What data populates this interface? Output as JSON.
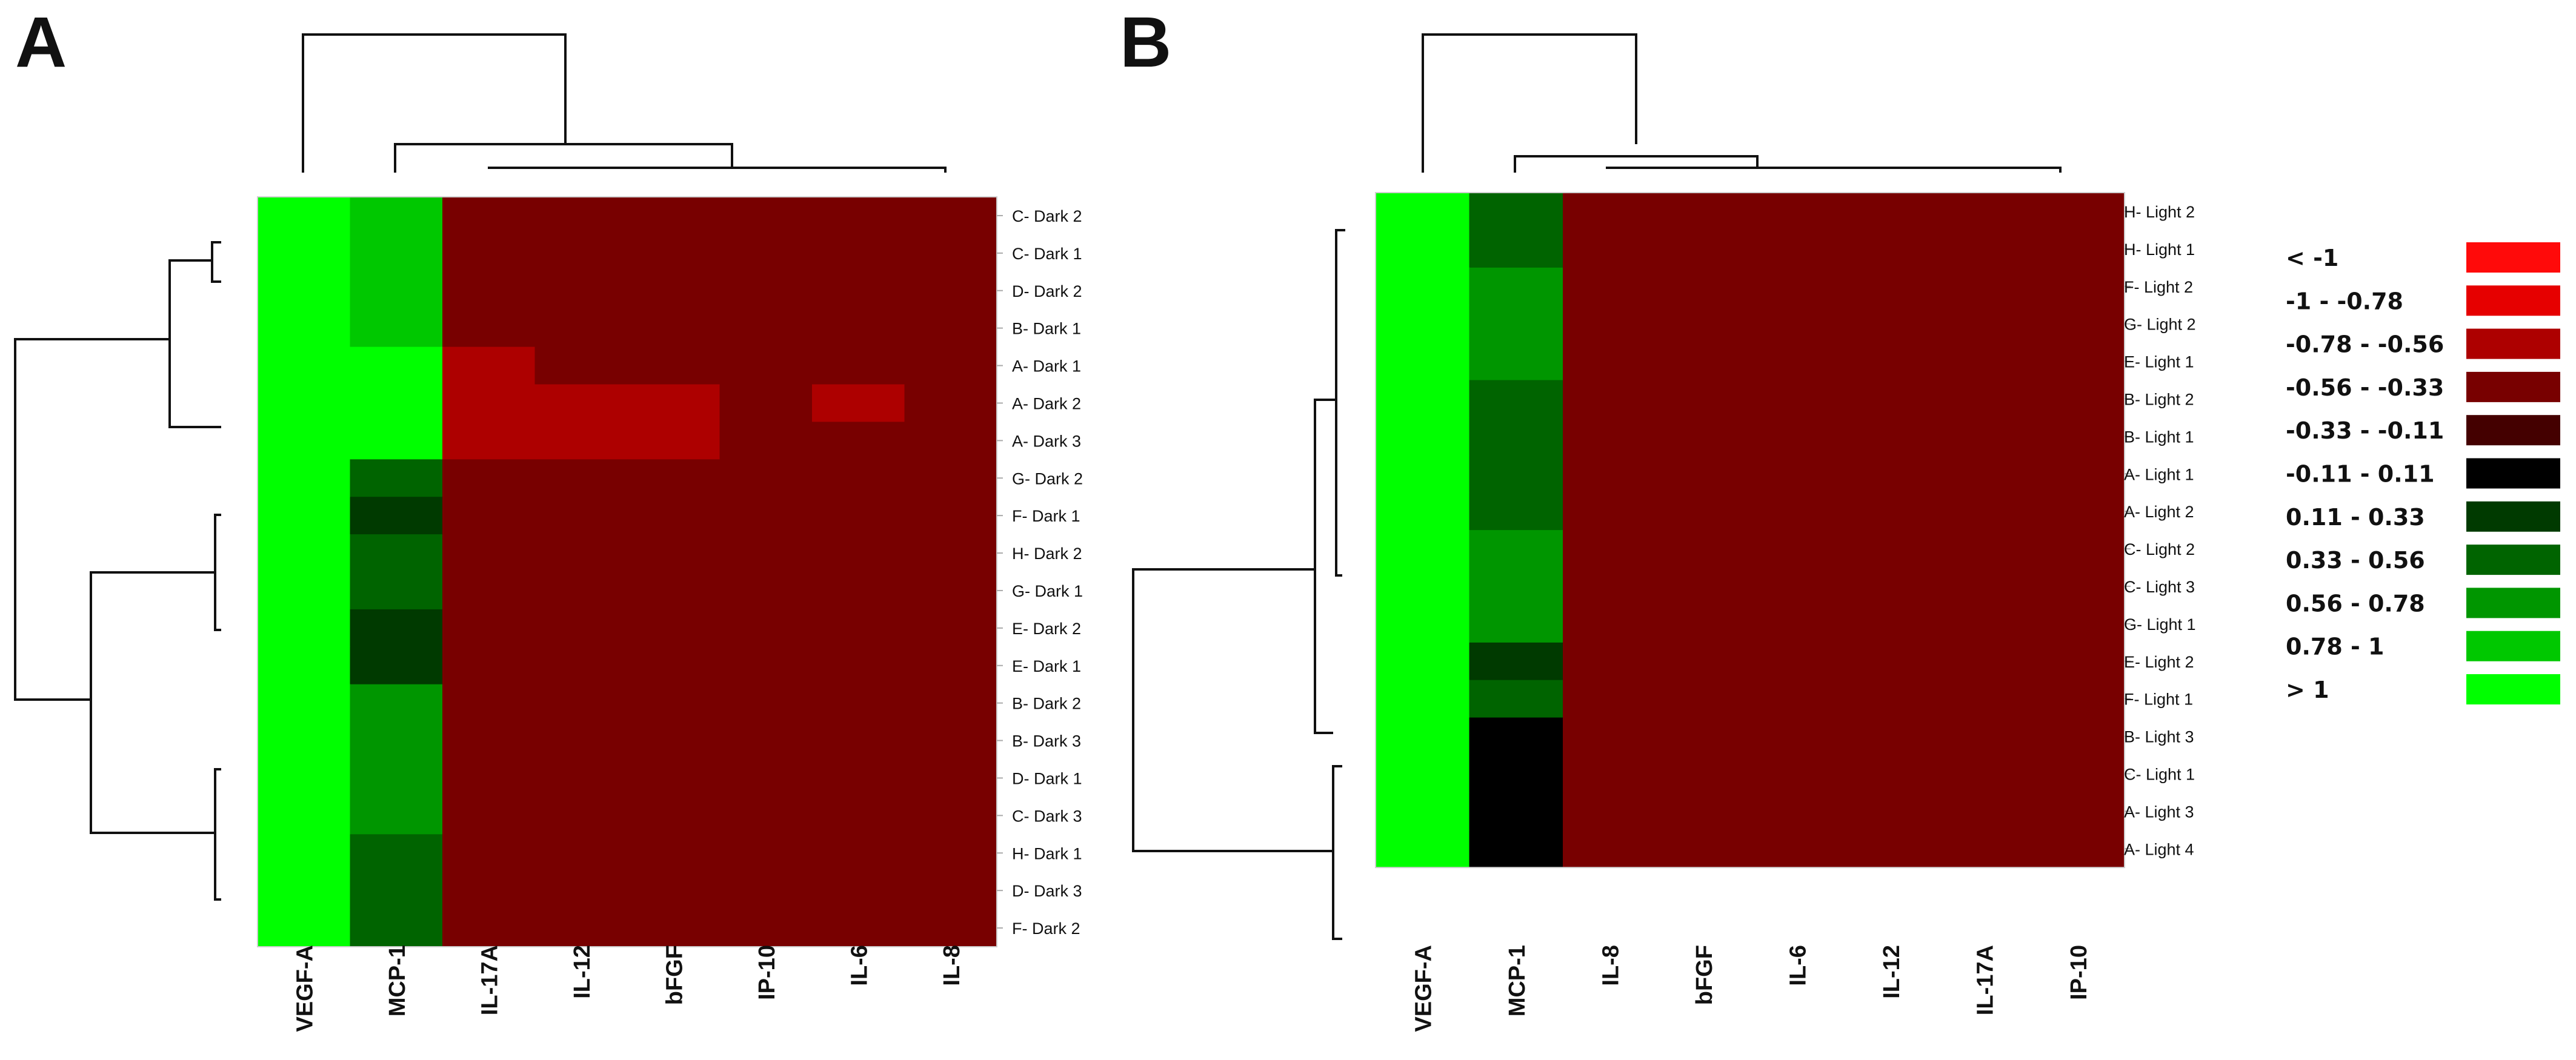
{
  "chart_data": [
    {
      "type": "heatmap",
      "title": "",
      "panel_label": "A",
      "columns": [
        "VEGF-A",
        "MCP-1",
        "IL-17A",
        "IL-12",
        "bFGF",
        "IP-10",
        "IL-6",
        "IL-8"
      ],
      "rows": [
        "C- Dark 2",
        "C- Dark 1",
        "D- Dark 2",
        "B- Dark 1",
        "A- Dark 1",
        "A- Dark 2",
        "A- Dark 3",
        "G- Dark 2",
        "F- Dark 1",
        "H- Dark 2",
        "G- Dark 1",
        "E- Dark 2",
        "E- Dark 1",
        "B- Dark 2",
        "B- Dark 3",
        "D- Dark 1",
        "C- Dark 3",
        "H- Dark 1",
        "D- Dark 3",
        "F- Dark 2"
      ],
      "values": [
        [
          1.2,
          0.9,
          -0.45,
          -0.45,
          -0.45,
          -0.45,
          -0.45,
          -0.45
        ],
        [
          1.2,
          0.9,
          -0.45,
          -0.45,
          -0.45,
          -0.45,
          -0.45,
          -0.45
        ],
        [
          1.2,
          0.9,
          -0.45,
          -0.45,
          -0.45,
          -0.45,
          -0.45,
          -0.45
        ],
        [
          1.2,
          0.9,
          -0.45,
          -0.45,
          -0.45,
          -0.45,
          -0.45,
          -0.45
        ],
        [
          1.2,
          1.2,
          -0.67,
          -0.45,
          -0.45,
          -0.45,
          -0.45,
          -0.45
        ],
        [
          1.2,
          1.2,
          -0.67,
          -0.67,
          -0.67,
          -0.45,
          -0.67,
          -0.45
        ],
        [
          1.2,
          1.2,
          -0.67,
          -0.67,
          -0.67,
          -0.45,
          -0.45,
          -0.45
        ],
        [
          1.2,
          0.45,
          -0.45,
          -0.45,
          -0.45,
          -0.45,
          -0.45,
          -0.45
        ],
        [
          1.2,
          0.22,
          -0.45,
          -0.45,
          -0.45,
          -0.45,
          -0.45,
          -0.45
        ],
        [
          1.2,
          0.45,
          -0.45,
          -0.45,
          -0.45,
          -0.45,
          -0.45,
          -0.45
        ],
        [
          1.2,
          0.45,
          -0.45,
          -0.45,
          -0.45,
          -0.45,
          -0.45,
          -0.45
        ],
        [
          1.2,
          0.22,
          -0.45,
          -0.45,
          -0.45,
          -0.45,
          -0.45,
          -0.45
        ],
        [
          1.2,
          0.22,
          -0.45,
          -0.45,
          -0.45,
          -0.45,
          -0.45,
          -0.45
        ],
        [
          1.2,
          0.67,
          -0.45,
          -0.45,
          -0.45,
          -0.45,
          -0.45,
          -0.45
        ],
        [
          1.2,
          0.67,
          -0.45,
          -0.45,
          -0.45,
          -0.45,
          -0.45,
          -0.45
        ],
        [
          1.2,
          0.67,
          -0.45,
          -0.45,
          -0.45,
          -0.45,
          -0.45,
          -0.45
        ],
        [
          1.2,
          0.67,
          -0.45,
          -0.45,
          -0.45,
          -0.45,
          -0.45,
          -0.45
        ],
        [
          1.2,
          0.45,
          -0.45,
          -0.45,
          -0.45,
          -0.45,
          -0.45,
          -0.45
        ],
        [
          1.2,
          0.45,
          -0.45,
          -0.45,
          -0.45,
          -0.45,
          -0.45,
          -0.45
        ],
        [
          1.2,
          0.45,
          -0.45,
          -0.45,
          -0.45,
          -0.45,
          -0.45,
          -0.45
        ]
      ],
      "column_dendrogram": "VEGF-A outgroup; MCP-1 joins cluster of remaining cytokines",
      "row_dendrogram": "two main clusters: Dark rows 1-7 and Dark rows 8-20"
    },
    {
      "type": "heatmap",
      "title": "",
      "panel_label": "B",
      "columns": [
        "VEGF-A",
        "MCP-1",
        "IL-8",
        "bFGF",
        "IL-6",
        "IL-12",
        "IL-17A",
        "IP-10"
      ],
      "rows": [
        "H- Light 2",
        "H- Light 1",
        "F- Light 2",
        "G- Light 2",
        "E- Light 1",
        "B- Light 2",
        "B- Light 1",
        "A- Light 1",
        "A- Light 2",
        "C- Light 2",
        "C- Light 3",
        "G- Light 1",
        "E- Light 2",
        "F- Light 1",
        "B- Light 3",
        "C- Light 1",
        "A- Light 3",
        "A- Light 4"
      ],
      "values": [
        [
          1.2,
          0.45,
          -0.45,
          -0.45,
          -0.45,
          -0.45,
          -0.45,
          -0.45
        ],
        [
          1.2,
          0.45,
          -0.45,
          -0.45,
          -0.45,
          -0.45,
          -0.45,
          -0.45
        ],
        [
          1.2,
          0.67,
          -0.45,
          -0.45,
          -0.45,
          -0.45,
          -0.45,
          -0.45
        ],
        [
          1.2,
          0.67,
          -0.45,
          -0.45,
          -0.45,
          -0.45,
          -0.45,
          -0.45
        ],
        [
          1.2,
          0.67,
          -0.45,
          -0.45,
          -0.45,
          -0.45,
          -0.45,
          -0.45
        ],
        [
          1.2,
          0.45,
          -0.45,
          -0.45,
          -0.45,
          -0.45,
          -0.45,
          -0.45
        ],
        [
          1.2,
          0.45,
          -0.45,
          -0.45,
          -0.45,
          -0.45,
          -0.45,
          -0.45
        ],
        [
          1.2,
          0.45,
          -0.45,
          -0.45,
          -0.45,
          -0.45,
          -0.45,
          -0.45
        ],
        [
          1.2,
          0.45,
          -0.45,
          -0.45,
          -0.45,
          -0.45,
          -0.45,
          -0.45
        ],
        [
          1.2,
          0.67,
          -0.45,
          -0.45,
          -0.45,
          -0.45,
          -0.45,
          -0.45
        ],
        [
          1.2,
          0.67,
          -0.45,
          -0.45,
          -0.45,
          -0.45,
          -0.45,
          -0.45
        ],
        [
          1.2,
          0.67,
          -0.45,
          -0.45,
          -0.45,
          -0.45,
          -0.45,
          -0.45
        ],
        [
          1.2,
          0.22,
          -0.45,
          -0.45,
          -0.45,
          -0.45,
          -0.45,
          -0.45
        ],
        [
          1.2,
          0.45,
          -0.45,
          -0.45,
          -0.45,
          -0.45,
          -0.45,
          -0.45
        ],
        [
          1.2,
          0.0,
          -0.45,
          -0.45,
          -0.45,
          -0.45,
          -0.45,
          -0.45
        ],
        [
          1.2,
          0.0,
          -0.45,
          -0.45,
          -0.45,
          -0.45,
          -0.45,
          -0.45
        ],
        [
          1.2,
          0.0,
          -0.45,
          -0.45,
          -0.45,
          -0.45,
          -0.45,
          -0.45
        ],
        [
          1.2,
          0.0,
          -0.45,
          -0.45,
          -0.45,
          -0.45,
          -0.45,
          -0.45
        ]
      ],
      "column_dendrogram": "VEGF-A outgroup; MCP-1 joins cluster of remaining cytokines",
      "row_dendrogram": "two main clusters: Light rows 1-14 and Light rows 15-18"
    }
  ],
  "legend": [
    {
      "label": "< -1",
      "color": "#ff0a0a",
      "min": null,
      "max": -1
    },
    {
      "label": "-1 - -0.78",
      "color": "#e60000",
      "min": -1,
      "max": -0.78
    },
    {
      "label": "-0.78 - -0.56",
      "color": "#ad0000",
      "min": -0.78,
      "max": -0.56
    },
    {
      "label": "-0.56 - -0.33",
      "color": "#780000",
      "min": -0.56,
      "max": -0.33
    },
    {
      "label": "-0.33 - -0.11",
      "color": "#440000",
      "min": -0.33,
      "max": -0.11
    },
    {
      "label": "-0.11 - 0.11",
      "color": "#000000",
      "min": -0.11,
      "max": 0.11
    },
    {
      "label": "0.11 - 0.33",
      "color": "#003a00",
      "min": 0.11,
      "max": 0.33
    },
    {
      "label": "0.33 - 0.56",
      "color": "#006400",
      "min": 0.33,
      "max": 0.56
    },
    {
      "label": "0.56 - 0.78",
      "color": "#009600",
      "min": 0.56,
      "max": 0.78
    },
    {
      "label": "0.78 - 1",
      "color": "#00c800",
      "min": 0.78,
      "max": 1
    },
    {
      "label": "> 1",
      "color": "#00ff00",
      "min": 1,
      "max": null
    }
  ]
}
